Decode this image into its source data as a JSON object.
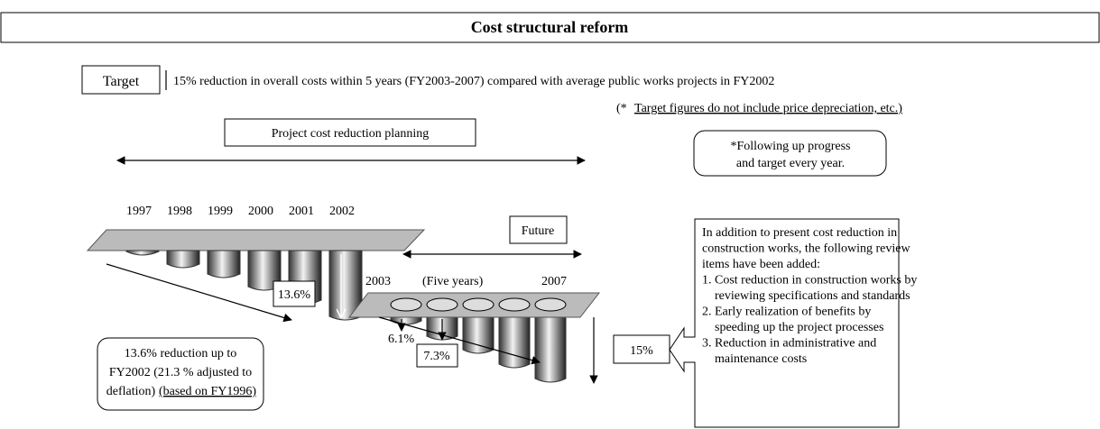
{
  "title": "Cost structural reform",
  "target": {
    "label": "Target",
    "text": "15% reduction in overall costs within 5 years (FY2003-2007) compared with average public works projects in FY2002",
    "note_prefix": "(*",
    "note": "Target figures do not include price depreciation, etc.)"
  },
  "planning": {
    "label": "Project cost reduction planning",
    "years": [
      "1997",
      "1998",
      "1999",
      "2000",
      "2001",
      "2002"
    ],
    "reduction": "13.6%",
    "summary": [
      "13.6% reduction up to",
      "FY2002 (21.3 % adjusted to",
      "deflation)",
      "(based on FY1996)"
    ]
  },
  "followup": [
    "*Following up progress",
    "and target every year."
  ],
  "future": {
    "label": "Future",
    "start": "2003",
    "span": "(Five years)",
    "end": "2007",
    "steps": [
      "6.1%",
      "7.3%"
    ],
    "target": "15%"
  },
  "review": [
    "In addition to present cost reduction in",
    "construction works, the following review",
    "items have been added:",
    "1. Cost reduction in construction works by",
    "    reviewing specifications and standards",
    "2. Early realization of benefits by",
    "    speeding up the project processes",
    "3. Reduction in administrative and",
    "    maintenance costs"
  ]
}
